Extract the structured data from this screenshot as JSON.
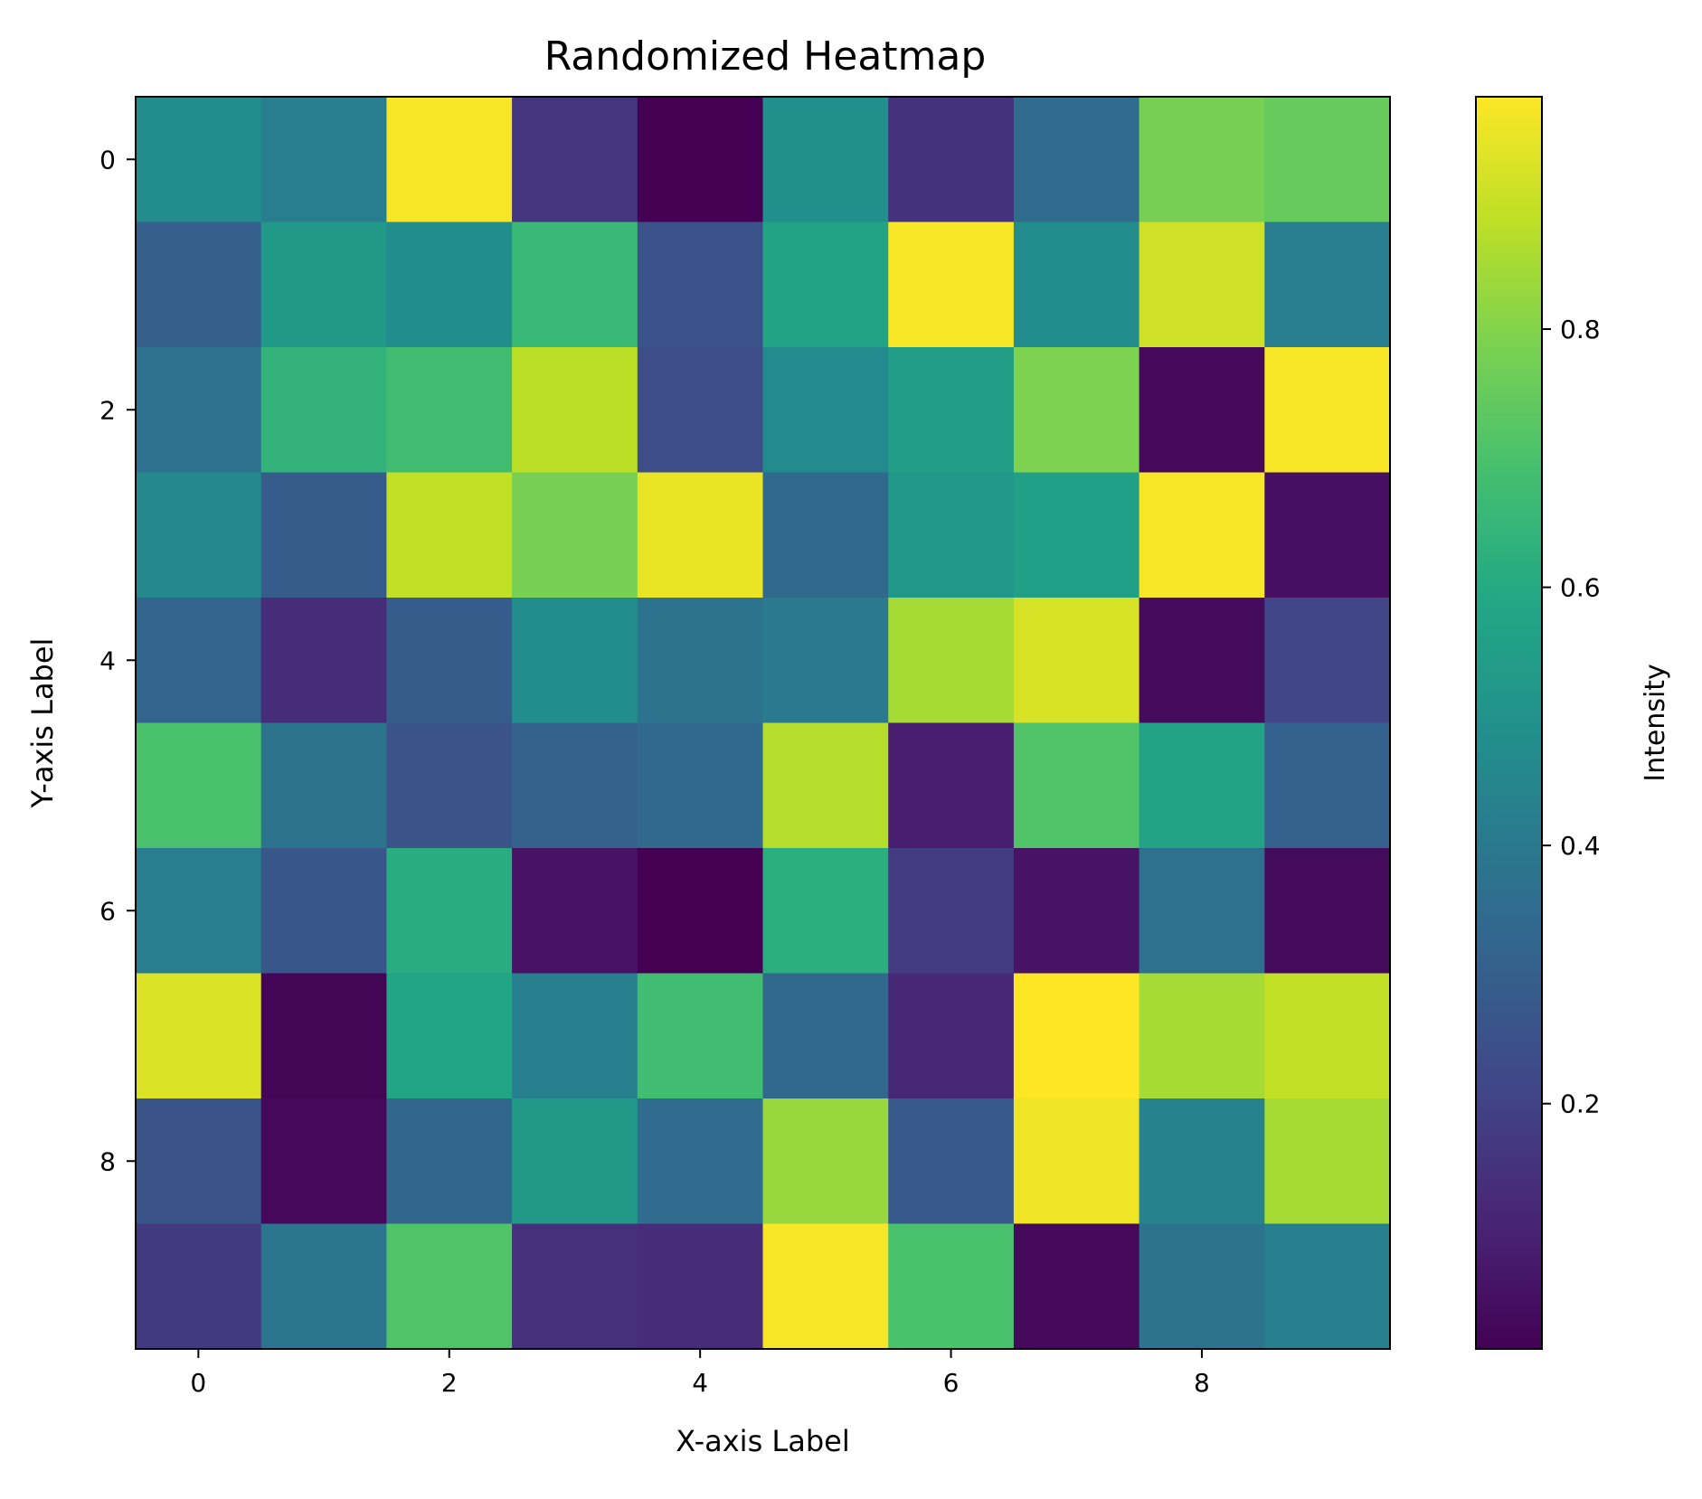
{
  "chart_data": {
    "type": "heatmap",
    "title": "Randomized Heatmap",
    "xlabel": "X-axis Label",
    "ylabel": "Y-axis Label",
    "colorbar_label": "Intensity",
    "colormap": "viridis",
    "rows": [
      0,
      1,
      2,
      3,
      4,
      5,
      6,
      7,
      8,
      9
    ],
    "cols": [
      0,
      1,
      2,
      3,
      4,
      5,
      6,
      7,
      8,
      9
    ],
    "x_ticks": [
      "0",
      "2",
      "4",
      "6",
      "8"
    ],
    "y_ticks": [
      "0",
      "2",
      "4",
      "6",
      "8"
    ],
    "colorbar_ticks": [
      "0.2",
      "0.4",
      "0.6",
      "0.8"
    ],
    "color_range": [
      0.01,
      0.98
    ],
    "values": [
      [
        0.48,
        0.42,
        0.97,
        0.16,
        0.01,
        0.49,
        0.15,
        0.35,
        0.78,
        0.75
      ],
      [
        0.3,
        0.53,
        0.48,
        0.66,
        0.25,
        0.57,
        0.97,
        0.48,
        0.91,
        0.42
      ],
      [
        0.37,
        0.64,
        0.68,
        0.88,
        0.24,
        0.47,
        0.55,
        0.79,
        0.03,
        0.97
      ],
      [
        0.46,
        0.29,
        0.89,
        0.78,
        0.95,
        0.34,
        0.52,
        0.56,
        0.97,
        0.05
      ],
      [
        0.32,
        0.13,
        0.29,
        0.48,
        0.38,
        0.4,
        0.85,
        0.92,
        0.04,
        0.21
      ],
      [
        0.7,
        0.38,
        0.26,
        0.31,
        0.34,
        0.87,
        0.09,
        0.71,
        0.57,
        0.31
      ],
      [
        0.42,
        0.27,
        0.61,
        0.06,
        0.01,
        0.62,
        0.18,
        0.06,
        0.37,
        0.04
      ],
      [
        0.93,
        0.02,
        0.58,
        0.43,
        0.68,
        0.34,
        0.12,
        0.98,
        0.85,
        0.89
      ],
      [
        0.26,
        0.03,
        0.33,
        0.53,
        0.35,
        0.83,
        0.28,
        0.96,
        0.44,
        0.85
      ],
      [
        0.17,
        0.39,
        0.71,
        0.14,
        0.13,
        0.97,
        0.7,
        0.03,
        0.38,
        0.43
      ]
    ]
  }
}
